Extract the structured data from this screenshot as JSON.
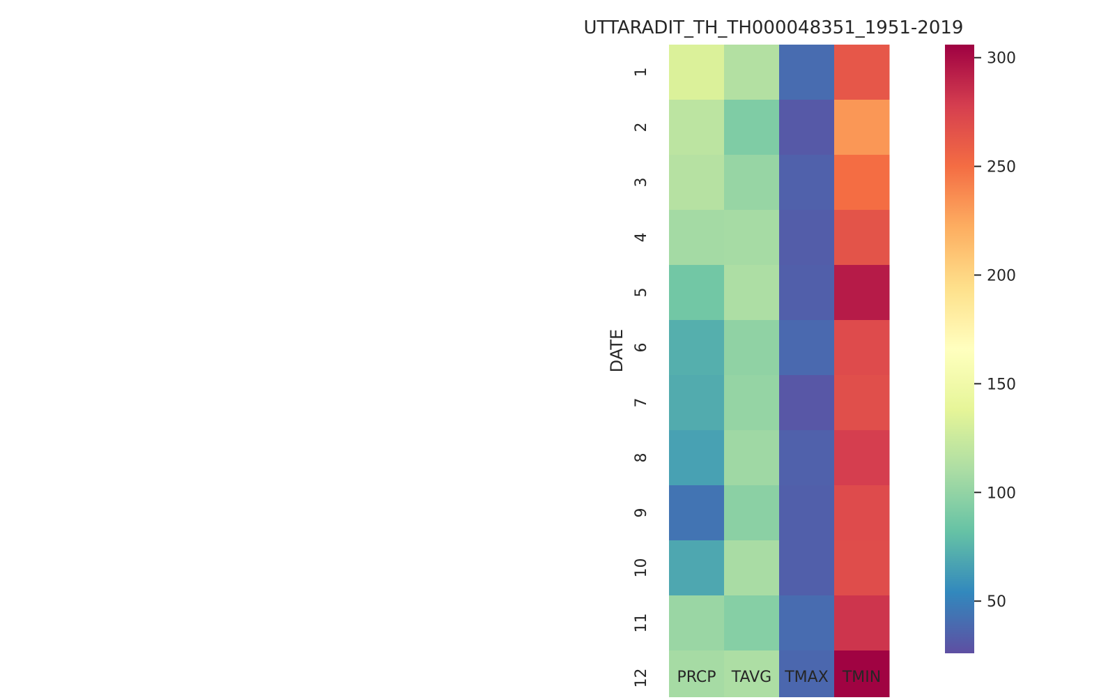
{
  "chart_data": {
    "type": "heatmap",
    "title": "UTTARADIT_TH_TH000048351_1951-2019",
    "ylabel": "DATE",
    "xlabel": "",
    "x_categories": [
      "PRCP",
      "TAVG",
      "TMAX",
      "TMIN"
    ],
    "y_categories": [
      "1",
      "2",
      "3",
      "4",
      "5",
      "6",
      "7",
      "8",
      "9",
      "10",
      "11",
      "12"
    ],
    "values": [
      [
        133,
        114,
        40,
        263
      ],
      [
        118,
        92,
        31,
        232
      ],
      [
        115,
        102,
        35,
        250
      ],
      [
        107,
        108,
        33,
        265
      ],
      [
        87,
        111,
        34,
        294
      ],
      [
        73,
        99,
        39,
        270
      ],
      [
        71,
        101,
        30,
        268
      ],
      [
        66,
        105,
        35,
        278
      ],
      [
        44,
        97,
        34,
        270
      ],
      [
        69,
        109,
        34,
        269
      ],
      [
        103,
        95,
        40,
        282
      ],
      [
        108,
        111,
        38,
        305
      ]
    ],
    "colormap": "Spectral_r",
    "colorbar": {
      "range": [
        26,
        306
      ],
      "ticks": [
        50,
        100,
        150,
        200,
        250,
        300
      ]
    },
    "grid": false,
    "legend": "colorbar-right"
  }
}
